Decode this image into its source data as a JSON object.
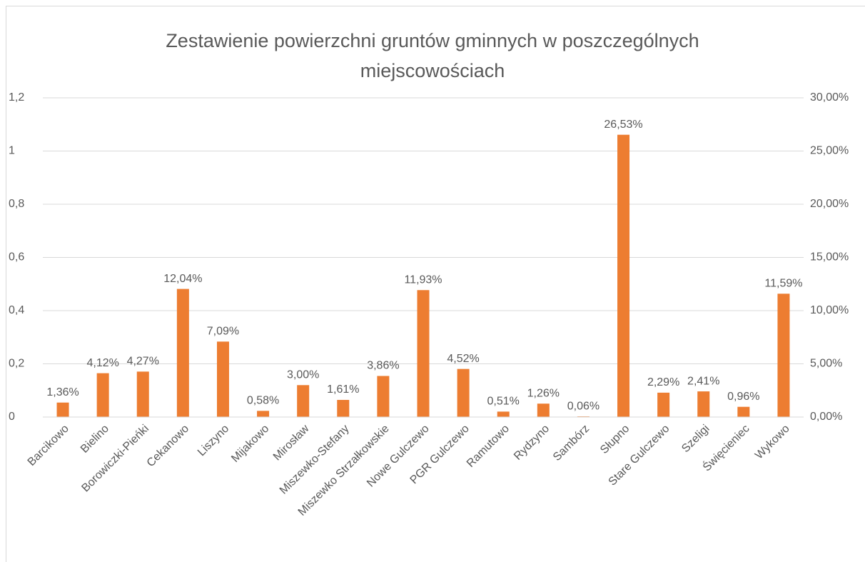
{
  "chart_data": {
    "type": "bar",
    "title": "Zestawienie powierzchni gruntów gminnych w poszczególnych miejscowościach",
    "categories": [
      "Barcikowo",
      "Bielino",
      "Borowiczki-Pieńki",
      "Cekanowo",
      "Liszyno",
      "Mijakowo",
      "Mirosław",
      "Miszewko-Stefany",
      "Miszewko Strzałkowskie",
      "Nowe Gulczewo",
      "PGR Gulczewo",
      "Ramutowo",
      "Rydzyno",
      "Sambórz",
      "Słupno",
      "Stare Gulczewo",
      "Szeligi",
      "Święcieniec",
      "Wykowo"
    ],
    "series": [
      {
        "name": null,
        "color": "#ed7d31",
        "axis": "y2",
        "values": [
          1.36,
          4.12,
          4.27,
          12.04,
          7.09,
          0.58,
          3.0,
          1.61,
          3.86,
          11.93,
          4.52,
          0.51,
          1.26,
          0.06,
          26.53,
          2.29,
          2.41,
          0.96,
          11.59
        ],
        "value_labels": [
          "1,36%",
          "4,12%",
          "4,27%",
          "12,04%",
          "7,09%",
          "0,58%",
          "3,00%",
          "1,61%",
          "3,86%",
          "11,93%",
          "4,52%",
          "0,51%",
          "1,26%",
          "0,06%",
          "26,53%",
          "2,29%",
          "2,41%",
          "0,96%",
          "11,59%"
        ]
      }
    ],
    "ylim": [
      0,
      1.2
    ],
    "yticks": [
      0,
      {
        "value": 0.2,
        "label": "0,2"
      },
      {
        "value": 0.4,
        "label": "0,4"
      },
      {
        "value": 0.6,
        "label": "0,6"
      },
      {
        "value": 0.8,
        "label": "0,8"
      },
      1,
      {
        "value": 1.2,
        "label": "1,2"
      }
    ],
    "y2lim": [
      0,
      30
    ],
    "y2ticks": [
      {
        "value": 0,
        "label": "0,00%"
      },
      {
        "value": 5,
        "label": "5,00%"
      },
      {
        "value": 10,
        "label": "10,00%"
      },
      {
        "value": 15,
        "label": "15,00%"
      },
      {
        "value": 20,
        "label": "20,00%"
      },
      {
        "value": 25,
        "label": "25,00%"
      },
      {
        "value": 30,
        "label": "30,00%"
      }
    ],
    "grid": true
  }
}
